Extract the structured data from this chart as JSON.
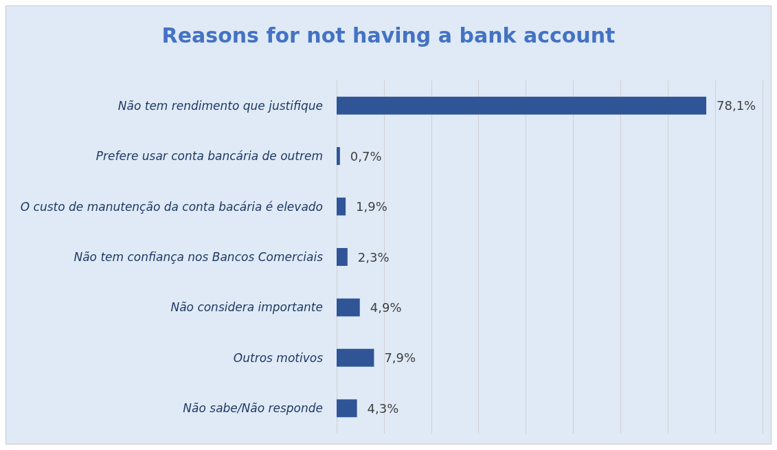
{
  "chart_data": {
    "type": "bar",
    "orientation": "horizontal",
    "title": "Reasons for not having a bank account",
    "categories": [
      "Não tem rendimento que justifique",
      "Prefere usar conta bancária de outrem",
      "O custo de manutenção da conta bacária é elevado",
      "Não tem confiança nos Bancos Comerciais",
      "Não considera importante",
      "Outros motivos",
      "Não sabe/Não responde"
    ],
    "values": [
      78.1,
      0.7,
      1.9,
      2.3,
      4.9,
      7.9,
      4.3
    ],
    "value_labels": [
      "78,1%",
      "0,7%",
      "1,9%",
      "2,3%",
      "4,9%",
      "7,9%",
      "4,3%"
    ],
    "color": "#2f5597",
    "xlim": [
      0,
      90
    ],
    "xticks": [
      {
        "value": 0,
        "label": null
      },
      {
        "value": 10,
        "label": null
      },
      {
        "value": 20,
        "label": null
      },
      {
        "value": 30,
        "label": null
      },
      {
        "value": 40,
        "label": null
      },
      {
        "value": 50,
        "label": null
      },
      {
        "value": 60,
        "label": null
      },
      {
        "value": 70,
        "label": null
      },
      {
        "value": 80,
        "label": null
      },
      {
        "value": 90,
        "label": null
      }
    ],
    "grid": "x",
    "tick_labels": "y"
  }
}
